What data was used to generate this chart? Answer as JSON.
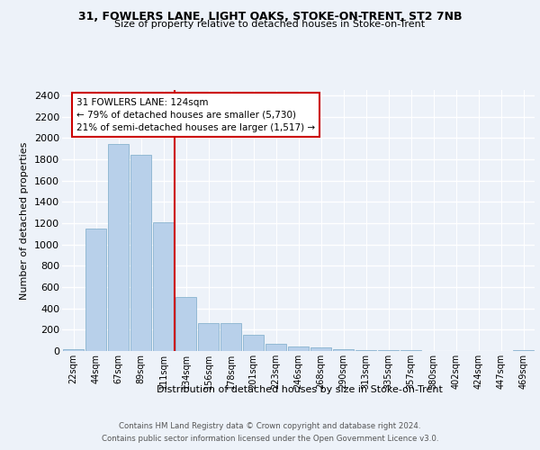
{
  "title1": "31, FOWLERS LANE, LIGHT OAKS, STOKE-ON-TRENT, ST2 7NB",
  "title2": "Size of property relative to detached houses in Stoke-on-Trent",
  "xlabel": "Distribution of detached houses by size in Stoke-on-Trent",
  "ylabel": "Number of detached properties",
  "categories": [
    "22sqm",
    "44sqm",
    "67sqm",
    "89sqm",
    "111sqm",
    "134sqm",
    "156sqm",
    "178sqm",
    "201sqm",
    "223sqm",
    "246sqm",
    "268sqm",
    "290sqm",
    "313sqm",
    "335sqm",
    "357sqm",
    "380sqm",
    "402sqm",
    "424sqm",
    "447sqm",
    "469sqm"
  ],
  "values": [
    20,
    1150,
    1940,
    1840,
    1210,
    510,
    265,
    265,
    155,
    65,
    45,
    30,
    20,
    10,
    8,
    5,
    3,
    2,
    1,
    1,
    10
  ],
  "bar_color": "#b8d0ea",
  "bar_edge_color": "#7aaac8",
  "vline_color": "#cc0000",
  "annotation_text": "31 FOWLERS LANE: 124sqm\n← 79% of detached houses are smaller (5,730)\n21% of semi-detached houses are larger (1,517) →",
  "annotation_box_color": "#cc0000",
  "ylim": [
    0,
    2450
  ],
  "yticks": [
    0,
    200,
    400,
    600,
    800,
    1000,
    1200,
    1400,
    1600,
    1800,
    2000,
    2200,
    2400
  ],
  "footer1": "Contains HM Land Registry data © Crown copyright and database right 2024.",
  "footer2": "Contains public sector information licensed under the Open Government Licence v3.0.",
  "bg_color": "#edf2f9",
  "grid_color": "#ffffff"
}
